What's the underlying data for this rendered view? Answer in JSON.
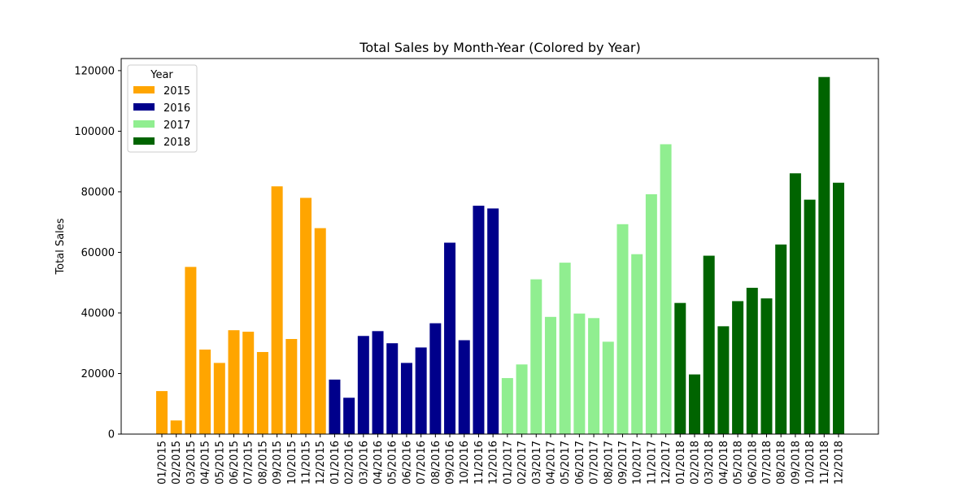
{
  "chart_data": {
    "type": "bar",
    "title": "Total Sales by Month-Year (Colored by Year)",
    "xlabel": "",
    "ylabel": "Total Sales",
    "ylim": [
      0,
      124000
    ],
    "yticks": [
      0,
      20000,
      40000,
      60000,
      80000,
      100000,
      120000
    ],
    "ytick_labels": [
      "0",
      "20000",
      "40000",
      "60000",
      "80000",
      "100000",
      "120000"
    ],
    "grid": false,
    "legend": {
      "title": "Year",
      "placement": "top-left",
      "entries": [
        {
          "label": "2015",
          "color": "#FFA500"
        },
        {
          "label": "2016",
          "color": "#00008B"
        },
        {
          "label": "2017",
          "color": "#90EE90"
        },
        {
          "label": "2018",
          "color": "#006400"
        }
      ]
    },
    "categories": [
      "01/2015",
      "02/2015",
      "03/2015",
      "04/2015",
      "05/2015",
      "06/2015",
      "07/2015",
      "08/2015",
      "09/2015",
      "10/2015",
      "11/2015",
      "12/2015",
      "01/2016",
      "02/2016",
      "03/2016",
      "04/2016",
      "05/2016",
      "06/2016",
      "07/2016",
      "08/2016",
      "09/2016",
      "10/2016",
      "11/2016",
      "12/2016",
      "01/2017",
      "02/2017",
      "03/2017",
      "04/2017",
      "05/2017",
      "06/2017",
      "07/2017",
      "08/2017",
      "09/2017",
      "10/2017",
      "11/2017",
      "12/2017",
      "01/2018",
      "02/2018",
      "03/2018",
      "04/2018",
      "05/2018",
      "06/2018",
      "07/2018",
      "08/2018",
      "09/2018",
      "10/2018",
      "11/2018",
      "12/2018"
    ],
    "tick_labels": [
      "01/2015",
      "02/2015",
      "03/2015",
      "04/2015",
      "05/2015",
      "06/2015",
      "07/2015",
      "08/2015",
      "09/2015",
      "10/2015",
      "11/2015",
      "12/2015",
      "01/2016",
      "02/2016",
      "03/2016",
      "04/2016",
      "05/2016",
      "06/2016",
      "07/2016",
      "08/2016",
      "09/2016",
      "10/2016",
      "11/2016",
      "12/2016",
      "01/2017",
      "02/2017",
      "03/2017",
      "04/2017",
      "05/2017",
      "06/2017",
      "07/2017",
      "08/2017",
      "09/2017",
      "10/2017",
      "11/2017",
      "12/2017",
      "01/2018",
      "02/2018",
      "03/2018",
      "04/2018",
      "05/2018",
      "06/2018",
      "07/2018",
      "08/2018",
      "09/2018",
      "10/2018",
      "11/2018",
      "12/2018"
    ],
    "values": [
      14200,
      4500,
      55200,
      27900,
      23500,
      34300,
      33800,
      27100,
      81800,
      31400,
      78000,
      68000,
      18000,
      12000,
      32400,
      34000,
      30000,
      23500,
      28600,
      36600,
      63200,
      31000,
      75400,
      74500,
      18500,
      23000,
      51100,
      38700,
      56600,
      39800,
      38300,
      30500,
      69300,
      59400,
      79200,
      95700,
      43300,
      19700,
      58900,
      35600,
      43900,
      48300,
      44800,
      62600,
      86100,
      77400,
      117900,
      83000
    ],
    "colors": [
      "#FFA500",
      "#FFA500",
      "#FFA500",
      "#FFA500",
      "#FFA500",
      "#FFA500",
      "#FFA500",
      "#FFA500",
      "#FFA500",
      "#FFA500",
      "#FFA500",
      "#FFA500",
      "#00008B",
      "#00008B",
      "#00008B",
      "#00008B",
      "#00008B",
      "#00008B",
      "#00008B",
      "#00008B",
      "#00008B",
      "#00008B",
      "#00008B",
      "#00008B",
      "#90EE90",
      "#90EE90",
      "#90EE90",
      "#90EE90",
      "#90EE90",
      "#90EE90",
      "#90EE90",
      "#90EE90",
      "#90EE90",
      "#90EE90",
      "#90EE90",
      "#90EE90",
      "#006400",
      "#006400",
      "#006400",
      "#006400",
      "#006400",
      "#006400",
      "#006400",
      "#006400",
      "#006400",
      "#006400",
      "#006400",
      "#006400"
    ]
  }
}
